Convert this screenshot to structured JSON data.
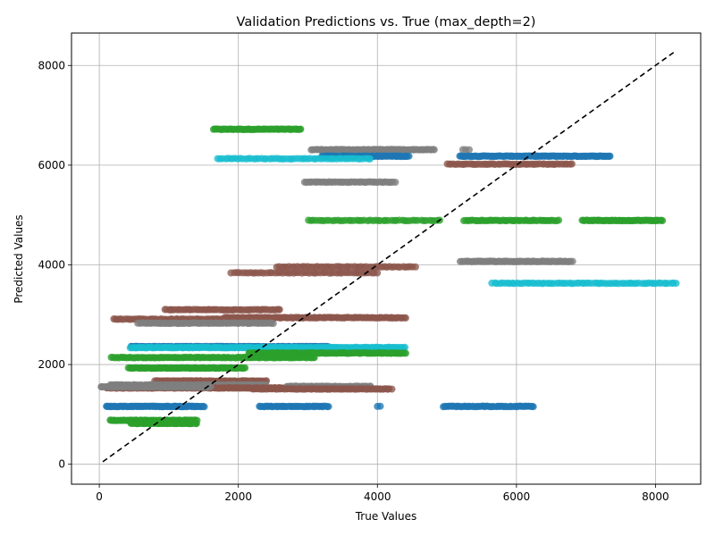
{
  "chart_data": {
    "type": "scatter",
    "title": "Validation Predictions vs. True (max_depth=2)",
    "xlabel": "True Values",
    "ylabel": "Predicted Values",
    "xlim": [
      -400,
      8650
    ],
    "ylim": [
      -400,
      8650
    ],
    "xticks": [
      0,
      2000,
      4000,
      6000,
      8000
    ],
    "yticks": [
      0,
      2000,
      4000,
      6000,
      8000
    ],
    "grid": true,
    "legend": "none",
    "reference_line": {
      "style": "dashed",
      "color": "#000000",
      "from": [
        50,
        50
      ],
      "to": [
        8280,
        8280
      ]
    },
    "colors": {
      "blue": "#1f77b4",
      "brown": "#8c564b",
      "green": "#2ca02c",
      "gray": "#7f7f7f",
      "cyan": "#17becf"
    },
    "bands": [
      {
        "color": "green",
        "y": 6720,
        "x_min": 1640,
        "x_max": 2900,
        "n": 70
      },
      {
        "color": "gray",
        "y": 6310,
        "x_min": 3050,
        "x_max": 4820,
        "n": 80
      },
      {
        "color": "gray",
        "y": 6310,
        "x_min": 5220,
        "x_max": 5320,
        "n": 3
      },
      {
        "color": "blue",
        "y": 6180,
        "x_min": 3200,
        "x_max": 4450,
        "n": 80
      },
      {
        "color": "blue",
        "y": 6180,
        "x_min": 5180,
        "x_max": 7350,
        "n": 130
      },
      {
        "color": "cyan",
        "y": 6130,
        "x_min": 1700,
        "x_max": 3900,
        "n": 60
      },
      {
        "color": "brown",
        "y": 6020,
        "x_min": 5000,
        "x_max": 6800,
        "n": 60
      },
      {
        "color": "gray",
        "y": 5660,
        "x_min": 2950,
        "x_max": 4250,
        "n": 55
      },
      {
        "color": "green",
        "y": 4890,
        "x_min": 3000,
        "x_max": 4900,
        "n": 50
      },
      {
        "color": "green",
        "y": 4890,
        "x_min": 5250,
        "x_max": 6600,
        "n": 55
      },
      {
        "color": "green",
        "y": 4890,
        "x_min": 6950,
        "x_max": 8100,
        "n": 70
      },
      {
        "color": "gray",
        "y": 4070,
        "x_min": 5200,
        "x_max": 6800,
        "n": 70
      },
      {
        "color": "brown",
        "y": 3960,
        "x_min": 2550,
        "x_max": 4550,
        "n": 55
      },
      {
        "color": "brown",
        "y": 3840,
        "x_min": 1900,
        "x_max": 4000,
        "n": 55
      },
      {
        "color": "cyan",
        "y": 3630,
        "x_min": 5650,
        "x_max": 8300,
        "n": 75
      },
      {
        "color": "brown",
        "y": 3100,
        "x_min": 950,
        "x_max": 2600,
        "n": 60
      },
      {
        "color": "brown",
        "y": 2940,
        "x_min": 1800,
        "x_max": 4400,
        "n": 110
      },
      {
        "color": "brown",
        "y": 2910,
        "x_min": 200,
        "x_max": 2500,
        "n": 80
      },
      {
        "color": "gray",
        "y": 2830,
        "x_min": 550,
        "x_max": 2500,
        "n": 90
      },
      {
        "color": "blue",
        "y": 2360,
        "x_min": 450,
        "x_max": 3300,
        "n": 160
      },
      {
        "color": "cyan",
        "y": 2340,
        "x_min": 450,
        "x_max": 4400,
        "n": 190
      },
      {
        "color": "green",
        "y": 2230,
        "x_min": 2150,
        "x_max": 4400,
        "n": 120
      },
      {
        "color": "green",
        "y": 2140,
        "x_min": 180,
        "x_max": 3100,
        "n": 120
      },
      {
        "color": "green",
        "y": 1930,
        "x_min": 420,
        "x_max": 2100,
        "n": 100
      },
      {
        "color": "brown",
        "y": 1670,
        "x_min": 800,
        "x_max": 2400,
        "n": 90
      },
      {
        "color": "gray",
        "y": 1590,
        "x_min": 150,
        "x_max": 2400,
        "n": 120
      },
      {
        "color": "brown",
        "y": 1530,
        "x_min": 100,
        "x_max": 3000,
        "n": 150
      },
      {
        "color": "gray",
        "y": 1560,
        "x_min": 2700,
        "x_max": 3900,
        "n": 70
      },
      {
        "color": "brown",
        "y": 1510,
        "x_min": 2200,
        "x_max": 4200,
        "n": 90
      },
      {
        "color": "gray",
        "y": 1550,
        "x_min": 20,
        "x_max": 1600,
        "n": 80
      },
      {
        "color": "blue",
        "y": 1160,
        "x_min": 100,
        "x_max": 1500,
        "n": 90
      },
      {
        "color": "blue",
        "y": 1160,
        "x_min": 2300,
        "x_max": 3300,
        "n": 50
      },
      {
        "color": "blue",
        "y": 1160,
        "x_min": 4000,
        "x_max": 4050,
        "n": 2
      },
      {
        "color": "blue",
        "y": 1160,
        "x_min": 4950,
        "x_max": 6250,
        "n": 60
      },
      {
        "color": "green",
        "y": 880,
        "x_min": 150,
        "x_max": 1400,
        "n": 70
      },
      {
        "color": "green",
        "y": 820,
        "x_min": 450,
        "x_max": 1400,
        "n": 80
      }
    ]
  }
}
